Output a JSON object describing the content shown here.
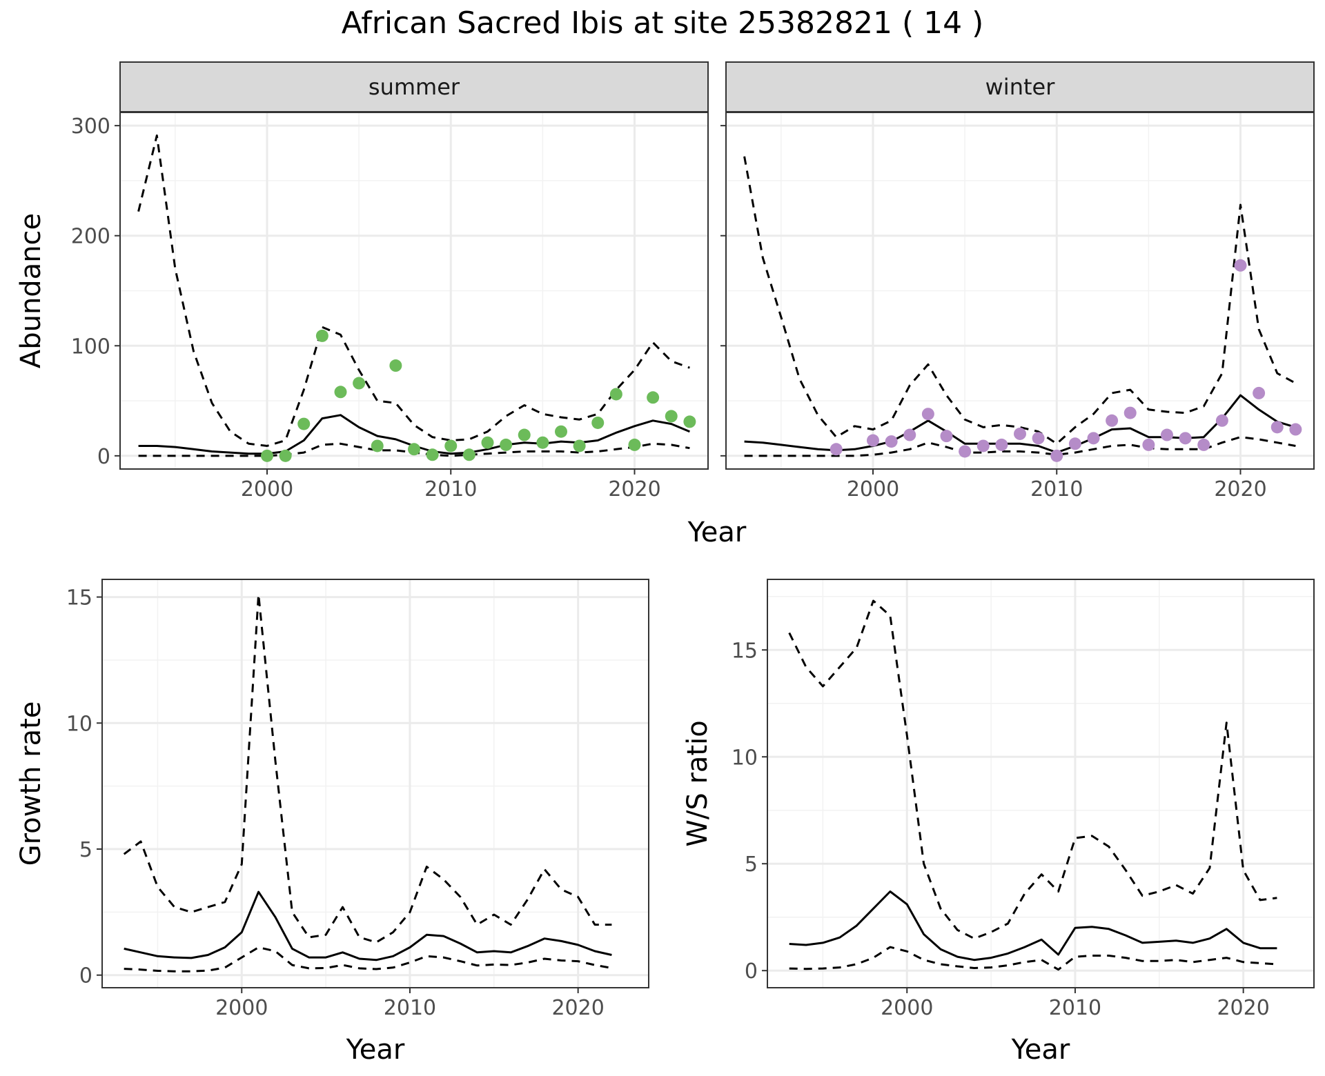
{
  "figure": {
    "title": "African Sacred Ibis at site 25382821 ( 14 )"
  },
  "chart_data": [
    {
      "type": "line",
      "id": "abundance_summer",
      "facet": "summer",
      "xlabel": "Year",
      "ylabel": "Abundance",
      "xlim": [
        1992,
        2024
      ],
      "ylim": [
        -12,
        312
      ],
      "xticks": [
        2000,
        2010,
        2020
      ],
      "yticks": [
        0,
        100,
        200,
        300
      ],
      "grid": true,
      "point_color": "#6cbb5a",
      "series": [
        {
          "role": "upper",
          "style": "dashed",
          "x": [
            1993,
            1994,
            1995,
            1996,
            1997,
            1998,
            1999,
            2000,
            2001,
            2002,
            2003,
            2004,
            2005,
            2006,
            2007,
            2008,
            2009,
            2010,
            2011,
            2012,
            2013,
            2014,
            2015,
            2016,
            2017,
            2018,
            2019,
            2020,
            2021,
            2022,
            2023
          ],
          "y": [
            222,
            291,
            170,
            95,
            48,
            22,
            11,
            9,
            14,
            60,
            117,
            110,
            78,
            50,
            48,
            28,
            17,
            14,
            15,
            22,
            36,
            46,
            38,
            35,
            33,
            38,
            60,
            78,
            103,
            86,
            80
          ]
        },
        {
          "role": "mean",
          "style": "solid",
          "x": [
            1993,
            1994,
            1995,
            1996,
            1997,
            1998,
            1999,
            2000,
            2001,
            2002,
            2003,
            2004,
            2005,
            2006,
            2007,
            2008,
            2009,
            2010,
            2011,
            2012,
            2013,
            2014,
            2015,
            2016,
            2017,
            2018,
            2019,
            2020,
            2021,
            2022,
            2023
          ],
          "y": [
            9,
            9,
            8,
            6,
            4,
            3,
            2,
            2,
            4,
            14,
            34,
            37,
            26,
            18,
            15,
            9,
            4,
            2,
            3,
            6,
            10,
            12,
            11,
            13,
            12,
            14,
            21,
            27,
            32,
            29,
            22
          ]
        },
        {
          "role": "lower",
          "style": "dashed",
          "x": [
            1993,
            1994,
            1995,
            1996,
            1997,
            1998,
            1999,
            2000,
            2001,
            2002,
            2003,
            2004,
            2005,
            2006,
            2007,
            2008,
            2009,
            2010,
            2011,
            2012,
            2013,
            2014,
            2015,
            2016,
            2017,
            2018,
            2019,
            2020,
            2021,
            2022,
            2023
          ],
          "y": [
            0,
            0,
            0,
            0,
            0,
            0,
            0,
            0,
            1,
            3,
            10,
            11,
            8,
            5,
            5,
            3,
            1,
            0,
            1,
            2,
            3,
            4,
            4,
            4,
            3,
            4,
            6,
            8,
            11,
            10,
            7
          ]
        },
        {
          "role": "observed",
          "style": "points",
          "x": [
            2000,
            2001,
            2002,
            2003,
            2004,
            2005,
            2006,
            2007,
            2008,
            2009,
            2010,
            2011,
            2012,
            2013,
            2014,
            2015,
            2016,
            2017,
            2018,
            2019,
            2020,
            2021,
            2022,
            2023
          ],
          "y": [
            0,
            0,
            29,
            109,
            58,
            66,
            9,
            82,
            6,
            1,
            9,
            1,
            12,
            10,
            19,
            12,
            22,
            9,
            30,
            56,
            10,
            53,
            36,
            31
          ]
        }
      ]
    },
    {
      "type": "line",
      "id": "abundance_winter",
      "facet": "winter",
      "xlabel": "Year",
      "ylabel": "",
      "xlim": [
        1992,
        2024
      ],
      "ylim": [
        -12,
        312
      ],
      "xticks": [
        2000,
        2010,
        2020
      ],
      "yticks": [
        0,
        100,
        200,
        300
      ],
      "grid": true,
      "point_color": "#b58cc8",
      "series": [
        {
          "role": "upper",
          "style": "dashed",
          "x": [
            1993,
            1994,
            1995,
            1996,
            1997,
            1998,
            1999,
            2000,
            2001,
            2002,
            2003,
            2004,
            2005,
            2006,
            2007,
            2008,
            2009,
            2010,
            2011,
            2012,
            2013,
            2014,
            2015,
            2016,
            2017,
            2018,
            2019,
            2020,
            2021,
            2022,
            2023
          ],
          "y": [
            272,
            180,
            126,
            70,
            37,
            17,
            27,
            24,
            32,
            64,
            83,
            55,
            33,
            26,
            28,
            26,
            22,
            11,
            26,
            38,
            57,
            60,
            42,
            40,
            39,
            45,
            75,
            228,
            115,
            75,
            66
          ]
        },
        {
          "role": "mean",
          "style": "solid",
          "x": [
            1993,
            1994,
            1995,
            1996,
            1997,
            1998,
            1999,
            2000,
            2001,
            2002,
            2003,
            2004,
            2005,
            2006,
            2007,
            2008,
            2009,
            2010,
            2011,
            2012,
            2013,
            2014,
            2015,
            2016,
            2017,
            2018,
            2019,
            2020,
            2021,
            2022,
            2023
          ],
          "y": [
            13,
            12,
            10,
            8,
            6,
            5,
            6,
            9,
            13,
            22,
            32,
            22,
            11,
            11,
            11,
            11,
            9,
            3,
            9,
            16,
            24,
            25,
            17,
            17,
            16,
            17,
            34,
            55,
            42,
            31,
            26
          ]
        },
        {
          "role": "lower",
          "style": "dashed",
          "x": [
            1993,
            1994,
            1995,
            1996,
            1997,
            1998,
            1999,
            2000,
            2001,
            2002,
            2003,
            2004,
            2005,
            2006,
            2007,
            2008,
            2009,
            2010,
            2011,
            2012,
            2013,
            2014,
            2015,
            2016,
            2017,
            2018,
            2019,
            2020,
            2021,
            2022,
            2023
          ],
          "y": [
            0,
            0,
            0,
            0,
            0,
            0,
            0,
            1,
            3,
            6,
            12,
            8,
            3,
            3,
            4,
            4,
            3,
            1,
            3,
            6,
            9,
            10,
            7,
            6,
            6,
            6,
            12,
            17,
            15,
            12,
            9
          ]
        },
        {
          "role": "observed",
          "style": "points",
          "x": [
            1998,
            2000,
            2001,
            2002,
            2003,
            2004,
            2005,
            2006,
            2007,
            2008,
            2009,
            2010,
            2011,
            2012,
            2013,
            2014,
            2015,
            2016,
            2017,
            2018,
            2019,
            2020,
            2021,
            2022,
            2023
          ],
          "y": [
            6,
            14,
            13,
            19,
            38,
            18,
            4,
            9,
            10,
            20,
            16,
            0,
            11,
            16,
            32,
            39,
            10,
            19,
            16,
            10,
            32,
            173,
            57,
            26,
            24
          ]
        }
      ]
    },
    {
      "type": "line",
      "id": "growth_rate",
      "xlabel": "Year",
      "ylabel": "Growth rate",
      "xlim": [
        1991.7,
        2024.2
      ],
      "ylim": [
        -0.5,
        15.7
      ],
      "xticks": [
        2000,
        2010,
        2020
      ],
      "yticks": [
        0,
        5,
        10,
        15
      ],
      "grid": true,
      "series": [
        {
          "role": "upper",
          "style": "dashed",
          "x": [
            1993,
            1994,
            1995,
            1996,
            1997,
            1998,
            1999,
            2000,
            2001,
            2002,
            2003,
            2004,
            2005,
            2006,
            2007,
            2008,
            2009,
            2010,
            2011,
            2012,
            2013,
            2014,
            2015,
            2016,
            2017,
            2018,
            2019,
            2020,
            2021,
            2022
          ],
          "y": [
            4.8,
            5.3,
            3.5,
            2.7,
            2.5,
            2.7,
            2.9,
            4.4,
            15.1,
            8.5,
            2.5,
            1.5,
            1.6,
            2.7,
            1.5,
            1.3,
            1.7,
            2.5,
            4.3,
            3.8,
            3.1,
            2.0,
            2.4,
            2.0,
            3.0,
            4.2,
            3.4,
            3.1,
            2.0,
            2.0
          ]
        },
        {
          "role": "mean",
          "style": "solid",
          "x": [
            1993,
            1994,
            1995,
            1996,
            1997,
            1998,
            1999,
            2000,
            2001,
            2002,
            2003,
            2004,
            2005,
            2006,
            2007,
            2008,
            2009,
            2010,
            2011,
            2012,
            2013,
            2014,
            2015,
            2016,
            2017,
            2018,
            2019,
            2020,
            2021,
            2022
          ],
          "y": [
            1.05,
            0.9,
            0.75,
            0.7,
            0.68,
            0.8,
            1.1,
            1.7,
            3.3,
            2.3,
            1.05,
            0.7,
            0.7,
            0.9,
            0.65,
            0.6,
            0.75,
            1.1,
            1.6,
            1.55,
            1.25,
            0.9,
            0.95,
            0.9,
            1.15,
            1.45,
            1.35,
            1.2,
            0.95,
            0.8
          ]
        },
        {
          "role": "lower",
          "style": "dashed",
          "x": [
            1993,
            1994,
            1995,
            1996,
            1997,
            1998,
            1999,
            2000,
            2001,
            2002,
            2003,
            2004,
            2005,
            2006,
            2007,
            2008,
            2009,
            2010,
            2011,
            2012,
            2013,
            2014,
            2015,
            2016,
            2017,
            2018,
            2019,
            2020,
            2021,
            2022
          ],
          "y": [
            0.25,
            0.22,
            0.17,
            0.15,
            0.15,
            0.18,
            0.3,
            0.7,
            1.1,
            0.95,
            0.4,
            0.27,
            0.28,
            0.4,
            0.27,
            0.24,
            0.3,
            0.5,
            0.75,
            0.7,
            0.55,
            0.38,
            0.42,
            0.4,
            0.5,
            0.65,
            0.58,
            0.55,
            0.4,
            0.28
          ]
        }
      ]
    },
    {
      "type": "line",
      "id": "ws_ratio",
      "xlabel": "Year",
      "ylabel": "W/S ratio",
      "xlim": [
        1991.7,
        2024.2
      ],
      "ylim": [
        -0.8,
        18.3
      ],
      "xticks": [
        2000,
        2010,
        2020
      ],
      "yticks": [
        0,
        5,
        10,
        15
      ],
      "grid": true,
      "series": [
        {
          "role": "upper",
          "style": "dashed",
          "x": [
            1993,
            1994,
            1995,
            1996,
            1997,
            1998,
            1999,
            2000,
            2001,
            2002,
            2003,
            2004,
            2005,
            2006,
            2007,
            2008,
            2009,
            2010,
            2011,
            2012,
            2013,
            2014,
            2015,
            2016,
            2017,
            2018,
            2019,
            2020,
            2021,
            2022
          ],
          "y": [
            15.8,
            14.2,
            13.3,
            14.2,
            15.1,
            17.3,
            16.6,
            11.0,
            5.0,
            2.9,
            1.9,
            1.5,
            1.8,
            2.2,
            3.6,
            4.5,
            3.7,
            6.2,
            6.3,
            5.8,
            4.7,
            3.5,
            3.7,
            4.0,
            3.6,
            4.8,
            11.6,
            4.7,
            3.3,
            3.4
          ]
        },
        {
          "role": "mean",
          "style": "solid",
          "x": [
            1993,
            1994,
            1995,
            1996,
            1997,
            1998,
            1999,
            2000,
            2001,
            2002,
            2003,
            2004,
            2005,
            2006,
            2007,
            2008,
            2009,
            2010,
            2011,
            2012,
            2013,
            2014,
            2015,
            2016,
            2017,
            2018,
            2019,
            2020,
            2021,
            2022
          ],
          "y": [
            1.25,
            1.2,
            1.3,
            1.55,
            2.1,
            2.9,
            3.7,
            3.1,
            1.7,
            1.0,
            0.65,
            0.5,
            0.6,
            0.8,
            1.1,
            1.45,
            0.75,
            2.0,
            2.05,
            1.95,
            1.65,
            1.3,
            1.35,
            1.4,
            1.3,
            1.5,
            1.95,
            1.3,
            1.05,
            1.05
          ]
        },
        {
          "role": "lower",
          "style": "dashed",
          "x": [
            1993,
            1994,
            1995,
            1996,
            1997,
            1998,
            1999,
            2000,
            2001,
            2002,
            2003,
            2004,
            2005,
            2006,
            2007,
            2008,
            2009,
            2010,
            2011,
            2012,
            2013,
            2014,
            2015,
            2016,
            2017,
            2018,
            2019,
            2020,
            2021,
            2022
          ],
          "y": [
            0.1,
            0.08,
            0.1,
            0.15,
            0.3,
            0.6,
            1.1,
            0.9,
            0.5,
            0.3,
            0.2,
            0.12,
            0.15,
            0.25,
            0.4,
            0.5,
            0.05,
            0.65,
            0.7,
            0.7,
            0.6,
            0.45,
            0.45,
            0.5,
            0.4,
            0.5,
            0.6,
            0.4,
            0.35,
            0.3
          ]
        }
      ]
    }
  ]
}
